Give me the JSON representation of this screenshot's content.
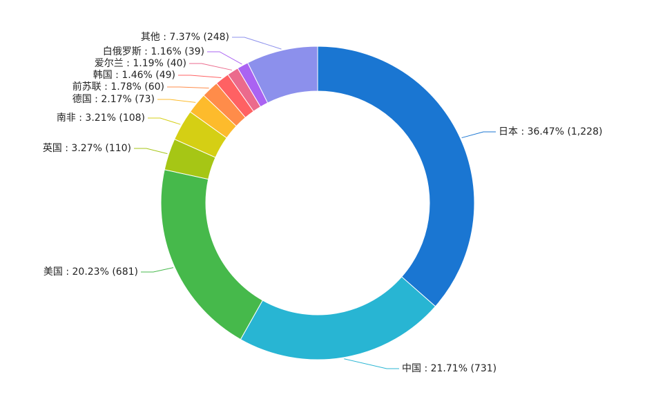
{
  "chart_data": {
    "type": "pie",
    "donut": true,
    "slices": [
      {
        "label": "日本",
        "percent": "36.47%",
        "count": "1,228",
        "value": 1228,
        "color": "#1a76d2"
      },
      {
        "label": "中国",
        "percent": "21.71%",
        "count": "731",
        "value": 731,
        "color": "#28b5d3"
      },
      {
        "label": "美国",
        "percent": "20.23%",
        "count": "681",
        "value": 681,
        "color": "#46b94b"
      },
      {
        "label": "英国",
        "percent": "3.27%",
        "count": "110",
        "value": 110,
        "color": "#a6c615"
      },
      {
        "label": "南非",
        "percent": "3.21%",
        "count": "108",
        "value": 108,
        "color": "#d5cf14"
      },
      {
        "label": "德国",
        "percent": "2.17%",
        "count": "73",
        "value": 73,
        "color": "#fdbb2c"
      },
      {
        "label": "前苏联",
        "percent": "1.78%",
        "count": "60",
        "value": 60,
        "color": "#ff8c4a"
      },
      {
        "label": "韩国",
        "percent": "1.46%",
        "count": "49",
        "value": 49,
        "color": "#ff6163"
      },
      {
        "label": "爱尔兰",
        "percent": "1.19%",
        "count": "40",
        "value": 40,
        "color": "#eb6a8c"
      },
      {
        "label": "白俄罗斯",
        "percent": "1.16%",
        "count": "39",
        "value": 39,
        "color": "#aa63f2"
      },
      {
        "label": "其他",
        "percent": "7.37%",
        "count": "248",
        "value": 248,
        "color": "#8c90ec"
      }
    ]
  }
}
